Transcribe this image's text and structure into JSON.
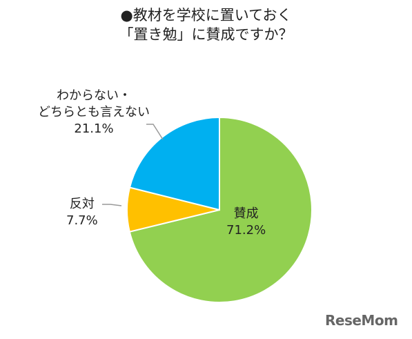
{
  "chart_data": {
    "type": "pie",
    "title": [
      "●教材を学校に置いておく",
      "「置き勉」に賛成ですか？"
    ],
    "slices": [
      {
        "label": "賛成",
        "value": 71.2,
        "value_label": "71.2%",
        "color": "#92d050"
      },
      {
        "label": "わからない・どちらとも言えない",
        "label_lines": [
          "わからない・",
          "どちらとも言えない"
        ],
        "value": 21.1,
        "value_label": "21.1%",
        "color": "#00b0f0"
      },
      {
        "label": "反対",
        "value": 7.7,
        "value_label": "7.7%",
        "color": "#ffc000"
      }
    ]
  },
  "logo": {
    "text": "ReseMom"
  }
}
